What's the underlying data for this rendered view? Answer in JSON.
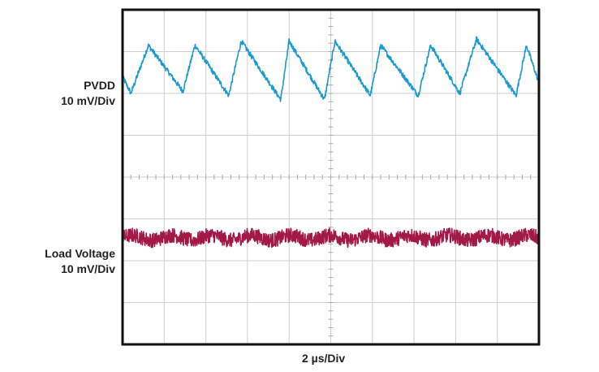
{
  "labels": {
    "ch1_name": "PVDD",
    "ch1_scale": "10 mV/Div",
    "ch2_name": "Load Voltage",
    "ch2_scale": "10 mV/Div",
    "timebase": "2 µs/Div"
  },
  "chart_data": {
    "type": "line",
    "title": "",
    "xlabel": "2 µs/Div",
    "ylabel": "",
    "x_divisions": 10,
    "y_divisions": 8,
    "grid": true,
    "x_unit": "µs",
    "xlim": [
      0,
      20
    ],
    "series": [
      {
        "name": "PVDD",
        "scale_label": "10 mV/Div",
        "color": "#1b9ad1",
        "description_points_div": [
          [
            0.0,
            2.4
          ],
          [
            0.2,
            2.0
          ],
          [
            0.62,
            3.15
          ],
          [
            1.45,
            2.05
          ],
          [
            1.74,
            3.15
          ],
          [
            2.55,
            1.95
          ],
          [
            2.85,
            3.25
          ],
          [
            3.8,
            1.85
          ],
          [
            4.0,
            3.25
          ],
          [
            4.85,
            1.85
          ],
          [
            5.1,
            3.25
          ],
          [
            5.95,
            1.95
          ],
          [
            6.2,
            3.15
          ],
          [
            7.1,
            1.95
          ],
          [
            7.4,
            3.15
          ],
          [
            8.1,
            2.0
          ],
          [
            8.5,
            3.3
          ],
          [
            9.45,
            1.95
          ],
          [
            9.7,
            3.15
          ],
          [
            10.0,
            2.25
          ]
        ],
        "period_us": 2.2,
        "amplitude_divs": 1.2
      },
      {
        "name": "Load Voltage",
        "scale_label": "10 mV/Div",
        "color": "#a31945",
        "level_divs": -1.45,
        "noise_divs_pp": 0.35
      }
    ]
  },
  "colors": {
    "frame": "#111111",
    "grid": "#cfcfcf",
    "pvdd": "#1b9ad1",
    "load": "#a31945"
  }
}
